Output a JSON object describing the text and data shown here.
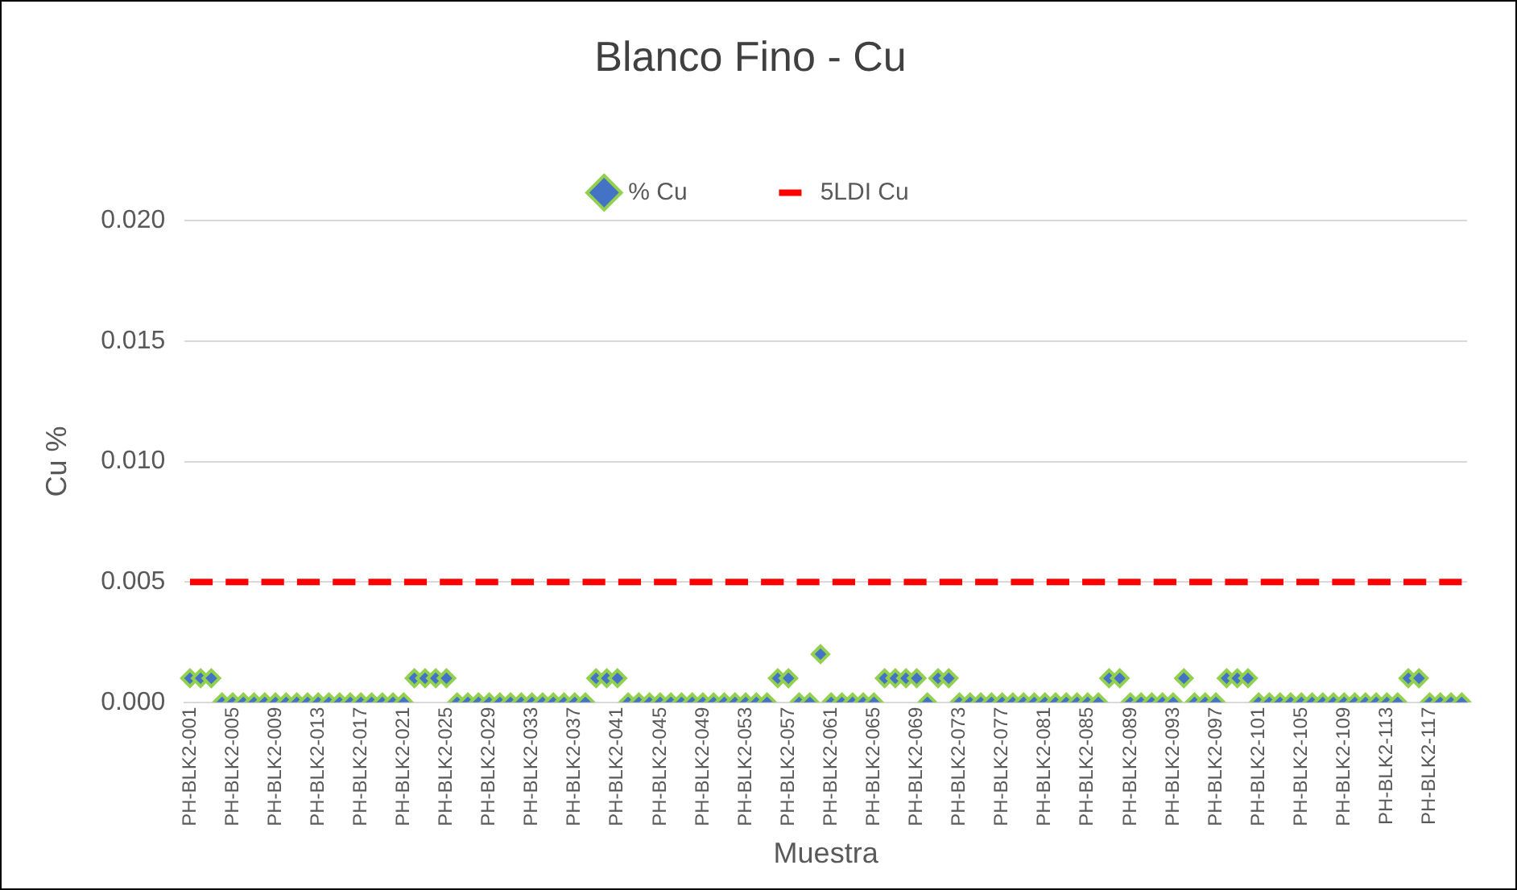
{
  "chart_data": {
    "type": "scatter",
    "title": "Blanco Fino - Cu",
    "xlabel": "Muestra",
    "ylabel": "Cu %",
    "categories": [
      "PH-BLK2-001",
      null,
      null,
      null,
      "PH-BLK2-005",
      null,
      null,
      null,
      "PH-BLK2-009",
      null,
      null,
      null,
      "PH-BLK2-013",
      null,
      null,
      null,
      "PH-BLK2-017",
      null,
      null,
      null,
      "PH-BLK2-021",
      null,
      null,
      null,
      "PH-BLK2-025",
      null,
      null,
      null,
      "PH-BLK2-029",
      null,
      null,
      null,
      "PH-BLK2-033",
      null,
      null,
      null,
      "PH-BLK2-037",
      null,
      null,
      null,
      "PH-BLK2-041",
      null,
      null,
      null,
      "PH-BLK2-045",
      null,
      null,
      null,
      "PH-BLK2-049",
      null,
      null,
      null,
      "PH-BLK2-053",
      null,
      null,
      null,
      "PH-BLK2-057",
      null,
      null,
      null,
      "PH-BLK2-061",
      null,
      null,
      null,
      "PH-BLK2-065",
      null,
      null,
      null,
      "PH-BLK2-069",
      null,
      null,
      null,
      "PH-BLK2-073",
      null,
      null,
      null,
      "PH-BLK2-077",
      null,
      null,
      null,
      "PH-BLK2-081",
      null,
      null,
      null,
      "PH-BLK2-085",
      null,
      null,
      null,
      "PH-BLK2-089",
      null,
      null,
      null,
      "PH-BLK2-093",
      null,
      null,
      null,
      "PH-BLK2-097",
      null,
      null,
      null,
      "PH-BLK2-101",
      null,
      null,
      null,
      "PH-BLK2-105",
      null,
      null,
      null,
      "PH-BLK2-109",
      null,
      null,
      null,
      "PH-BLK2-113",
      null,
      null,
      null,
      "PH-BLK2-117",
      null,
      null,
      null
    ],
    "series": [
      {
        "name": "% Cu",
        "color": "#4472c4",
        "marker": "diamond",
        "values": [
          0.001,
          0.001,
          0.001,
          0,
          0,
          0,
          0,
          0,
          0,
          0,
          0,
          0,
          0,
          0,
          0,
          0,
          0,
          0,
          0,
          0,
          0,
          0.001,
          0.001,
          0.001,
          0.001,
          0,
          0,
          0,
          0,
          0,
          0,
          0,
          0,
          0,
          0,
          0,
          0,
          0,
          0.001,
          0.001,
          0.001,
          0,
          0,
          0,
          0,
          0,
          0,
          0,
          0,
          0,
          0,
          0,
          0,
          0,
          0,
          0.001,
          0.001,
          0,
          0,
          0.002,
          0,
          0,
          0,
          0,
          0,
          0.001,
          0.001,
          0.001,
          0.001,
          0,
          0.001,
          0.001,
          0,
          0,
          0,
          0,
          0,
          0,
          0,
          0,
          0,
          0,
          0,
          0,
          0,
          0,
          0.001,
          0.001,
          0,
          0,
          0,
          0,
          0,
          0.001,
          0,
          0,
          0,
          0.001,
          0.001,
          0.001,
          0,
          0,
          0,
          0,
          0,
          0,
          0,
          0,
          0,
          0,
          0,
          0,
          0,
          0,
          0.001,
          0.001,
          0,
          0,
          0,
          0
        ]
      },
      {
        "name": "5LDI Cu",
        "type": "line",
        "color": "#ff0000",
        "marker": "none",
        "line_style": "dashed",
        "values": [
          0.005,
          0.005,
          0.005,
          0.005,
          0.005,
          0.005,
          0.005,
          0.005,
          0.005,
          0.005,
          0.005,
          0.005,
          0.005,
          0.005,
          0.005,
          0.005,
          0.005,
          0.005,
          0.005,
          0.005,
          0.005,
          0.005,
          0.005,
          0.005,
          0.005,
          0.005,
          0.005,
          0.005,
          0.005,
          0.005,
          0.005,
          0.005,
          0.005,
          0.005,
          0.005,
          0.005,
          0.005,
          0.005,
          0.005,
          0.005,
          0.005,
          0.005,
          0.005,
          0.005,
          0.005,
          0.005,
          0.005,
          0.005,
          0.005,
          0.005,
          0.005,
          0.005,
          0.005,
          0.005,
          0.005,
          0.005,
          0.005,
          0.005,
          0.005,
          0.005,
          0.005,
          0.005,
          0.005,
          0.005,
          0.005,
          0.005,
          0.005,
          0.005,
          0.005,
          0.005,
          0.005,
          0.005,
          0.005,
          0.005,
          0.005,
          0.005,
          0.005,
          0.005,
          0.005,
          0.005,
          0.005,
          0.005,
          0.005,
          0.005,
          0.005,
          0.005,
          0.005,
          0.005,
          0.005,
          0.005,
          0.005,
          0.005,
          0.005,
          0.005,
          0.005,
          0.005,
          0.005,
          0.005,
          0.005,
          0.005,
          0.005,
          0.005,
          0.005,
          0.005,
          0.005,
          0.005,
          0.005,
          0.005,
          0.005,
          0.005,
          0.005,
          0.005,
          0.005,
          0.005,
          0.005,
          0.005,
          0.005,
          0.005,
          0.005,
          0.005
        ]
      }
    ],
    "ylim": [
      0,
      0.02
    ],
    "yticks": [
      {
        "value": 0,
        "label": "0.000"
      },
      {
        "value": 0.005,
        "label": "0.005"
      },
      {
        "value": 0.01,
        "label": "0.010"
      },
      {
        "value": 0.015,
        "label": "0.015"
      },
      {
        "value": 0.02,
        "label": "0.020"
      }
    ],
    "grid": "y",
    "legend": "top"
  }
}
